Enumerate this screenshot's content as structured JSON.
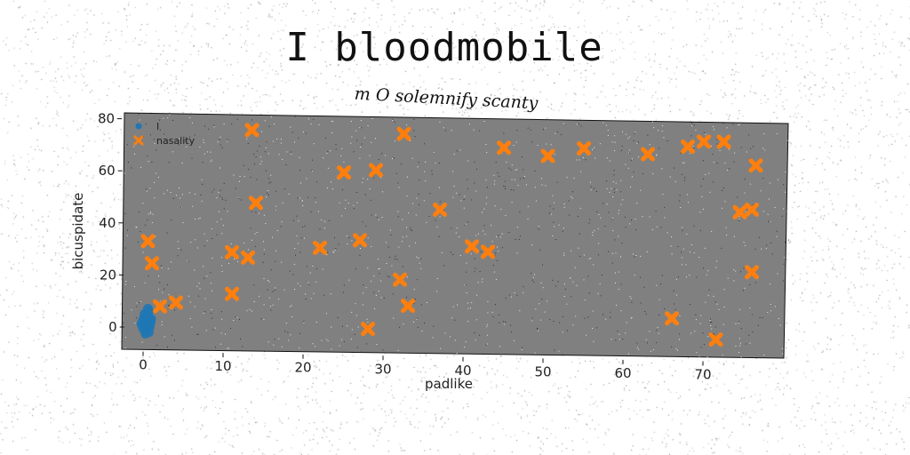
{
  "chart_data": {
    "type": "scatter",
    "title": "I bloodmobile",
    "subtitle": "m O solemnify scanty",
    "xlabel": "padlike",
    "ylabel": "bicuspidate",
    "xlim": [
      -4,
      80
    ],
    "ylim": [
      -8,
      82
    ],
    "xticks": [
      0,
      10,
      20,
      30,
      40,
      50,
      60,
      70
    ],
    "yticks": [
      0,
      20,
      40,
      60,
      80
    ],
    "grid": false,
    "legend_position": "top-left",
    "background_color": "#808080",
    "series": [
      {
        "name": "I",
        "marker": "circle",
        "color": "#1f77b4",
        "points": [
          [
            0.2,
            0.5
          ],
          [
            0.5,
            4.0
          ],
          [
            -0.2,
            2.0
          ],
          [
            0.8,
            1.5
          ],
          [
            0.3,
            -1.5
          ],
          [
            0.6,
            6.0
          ],
          [
            -0.1,
            -0.5
          ],
          [
            0.9,
            3.0
          ],
          [
            0.4,
            2.5
          ],
          [
            0.1,
            5.0
          ],
          [
            0.7,
            0.0
          ],
          [
            0.0,
            3.5
          ],
          [
            0.6,
            -2.0
          ],
          [
            -0.3,
            1.0
          ],
          [
            0.5,
            7.0
          ],
          [
            0.2,
            -2.5
          ]
        ]
      },
      {
        "name": "nasality",
        "marker": "x",
        "color": "#ff7f0e",
        "points": [
          [
            0.5,
            33
          ],
          [
            1.0,
            24.5
          ],
          [
            2.0,
            8
          ],
          [
            4.0,
            9.5
          ],
          [
            11,
            13
          ],
          [
            11,
            29
          ],
          [
            13,
            27
          ],
          [
            13.5,
            76
          ],
          [
            14,
            48
          ],
          [
            22,
            31
          ],
          [
            25,
            60
          ],
          [
            27,
            34
          ],
          [
            28,
            0
          ],
          [
            29,
            61
          ],
          [
            32,
            19
          ],
          [
            32.5,
            75
          ],
          [
            33,
            9
          ],
          [
            37,
            46
          ],
          [
            41,
            32
          ],
          [
            43,
            30
          ],
          [
            45,
            70
          ],
          [
            50.5,
            67
          ],
          [
            55,
            70
          ],
          [
            63,
            68
          ],
          [
            66,
            5
          ],
          [
            68,
            71
          ],
          [
            70,
            73
          ],
          [
            71.5,
            -3
          ],
          [
            72.5,
            73
          ],
          [
            74.5,
            46
          ],
          [
            76,
            47
          ],
          [
            76,
            23
          ],
          [
            76.5,
            64
          ]
        ]
      }
    ]
  }
}
